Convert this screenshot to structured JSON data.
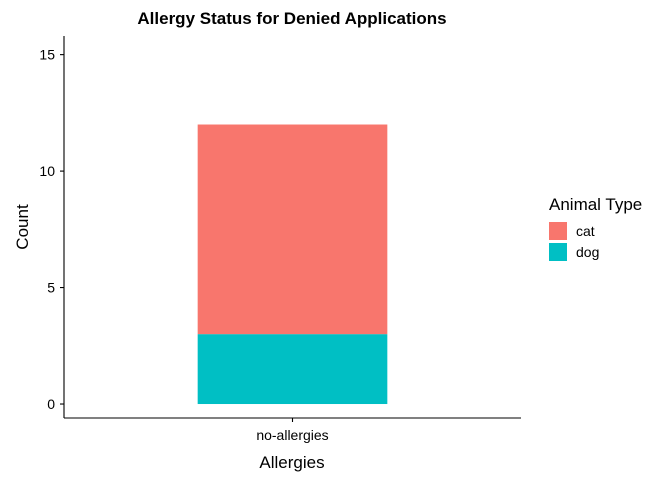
{
  "chart_data": {
    "type": "bar",
    "stacked": true,
    "title": "Allergy Status for Denied Applications",
    "xlabel": "Allergies",
    "ylabel": "Count",
    "categories": [
      "no-allergies"
    ],
    "series": [
      {
        "name": "cat",
        "values": [
          9
        ],
        "color": "#F8766D"
      },
      {
        "name": "dog",
        "values": [
          3
        ],
        "color": "#00BFC4"
      }
    ],
    "ylim": [
      -0.6,
      15.8
    ],
    "yticks": [
      0,
      5,
      10,
      15
    ],
    "grid": false,
    "legend": {
      "title": "Animal Type",
      "position": "right"
    }
  }
}
